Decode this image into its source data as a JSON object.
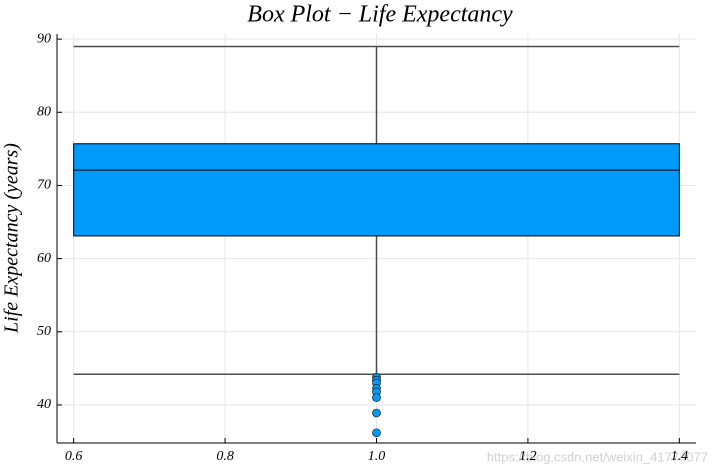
{
  "chart_data": {
    "type": "box",
    "title": "Box Plot − Life Expectancy",
    "y_label": "Life Expectancy (years)",
    "x": 1,
    "box_range": [
      0.6,
      1.4
    ],
    "color": "#009af9",
    "line_color": "#4d4d4d",
    "whisker_low": 44.2,
    "q1": 63.1,
    "median": 72.1,
    "q3": 75.7,
    "whisker_high": 89.0,
    "outliers": [
      43.8,
      43.4,
      43.0,
      42.3,
      41.8,
      41.0,
      38.9,
      36.2
    ],
    "xlim": [
      0.578,
      1.422
    ],
    "xticks": [
      0.6,
      0.8,
      {
        "value": 1,
        "label": "1.0"
      },
      1.2,
      1.4
    ],
    "ylim": [
      34.8,
      90.7
    ],
    "yticks": [
      40,
      50,
      60,
      70,
      80,
      90
    ],
    "grid": true,
    "watermark": "https://blog.csdn.net/weixin_41774077"
  }
}
